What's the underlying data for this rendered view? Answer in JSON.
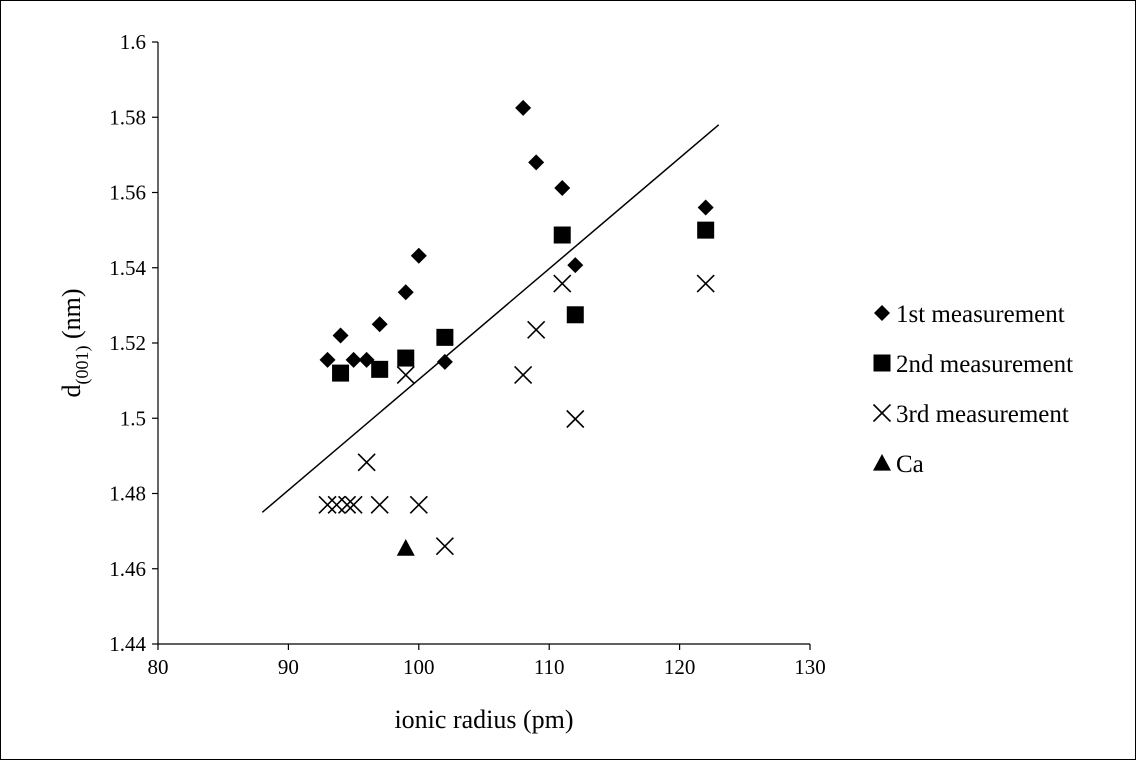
{
  "chart_data": {
    "type": "scatter",
    "title": "",
    "xlabel": "ionic radius (pm)",
    "ylabel": {
      "main": "d",
      "sub": "(001)",
      "unit": " (nm)"
    },
    "xlim": [
      80,
      130
    ],
    "ylim": [
      1.44,
      1.6
    ],
    "xticks": [
      80,
      90,
      100,
      110,
      120,
      130
    ],
    "yticks": [
      1.44,
      1.46,
      1.48,
      1.5,
      1.52,
      1.54,
      1.56,
      1.58,
      1.6
    ],
    "xtick_labels": [
      "80",
      "90",
      "100",
      "110",
      "120",
      "130"
    ],
    "ytick_labels": [
      "1.44",
      "1.46",
      "1.48",
      "1.5",
      "1.52",
      "1.54",
      "1.56",
      "1.58",
      "1.6"
    ],
    "grid": false,
    "legend_position": "right",
    "series": [
      {
        "name": "1st measurement",
        "marker": "diamond",
        "color": "#000000",
        "points": [
          [
            93,
            1.5155
          ],
          [
            94,
            1.522
          ],
          [
            95,
            1.5155
          ],
          [
            96,
            1.5155
          ],
          [
            97,
            1.525
          ],
          [
            99,
            1.5335
          ],
          [
            100,
            1.5432
          ],
          [
            102,
            1.515
          ],
          [
            108,
            1.5825
          ],
          [
            109,
            1.568
          ],
          [
            111,
            1.5612
          ],
          [
            112,
            1.5407
          ],
          [
            122,
            1.556
          ]
        ]
      },
      {
        "name": "2nd measurement",
        "marker": "square",
        "color": "#000000",
        "points": [
          [
            94,
            1.512
          ],
          [
            97,
            1.513
          ],
          [
            99,
            1.516
          ],
          [
            102,
            1.5215
          ],
          [
            111,
            1.5487
          ],
          [
            112,
            1.5275
          ],
          [
            122,
            1.55
          ]
        ]
      },
      {
        "name": "3rd measurement",
        "marker": "x",
        "color": "#000000",
        "points": [
          [
            93,
            1.477
          ],
          [
            93.7,
            1.477
          ],
          [
            94.5,
            1.477
          ],
          [
            95,
            1.477
          ],
          [
            96,
            1.4883
          ],
          [
            97,
            1.477
          ],
          [
            99,
            1.5115
          ],
          [
            100,
            1.477
          ],
          [
            102,
            1.466
          ],
          [
            108,
            1.5115
          ],
          [
            109,
            1.5235
          ],
          [
            111,
            1.5358
          ],
          [
            112,
            1.4998
          ],
          [
            122,
            1.5358
          ]
        ]
      },
      {
        "name": "Ca",
        "marker": "triangle",
        "color": "#000000",
        "points": [
          [
            99,
            1.4655
          ]
        ]
      }
    ],
    "trendline": {
      "x": [
        88,
        123
      ],
      "y": [
        1.475,
        1.578
      ],
      "color": "#000000"
    }
  }
}
